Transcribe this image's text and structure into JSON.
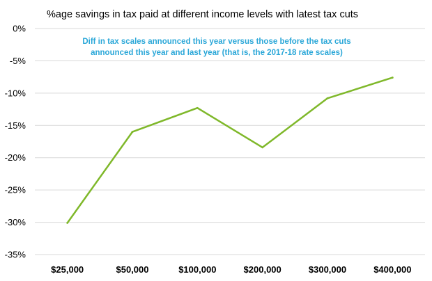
{
  "chart_data": {
    "type": "line",
    "title": "%age savings in tax paid at different income levels with latest tax cuts",
    "annotation": [
      "Diff in tax scales announced this year versus those before the tax cuts",
      "announced this year and last year (that is, the 2017-18 rate scales)"
    ],
    "categories": [
      "$25,000",
      "$50,000",
      "$100,000",
      "$200,000",
      "$300,000",
      "$400,000"
    ],
    "series": [
      {
        "values": [
          -30.1,
          -16.0,
          -12.3,
          -18.4,
          -10.8,
          -7.6
        ]
      }
    ],
    "yticks": [
      0,
      -5,
      -10,
      -15,
      -20,
      -25,
      -30,
      -35
    ],
    "ytick_labels": [
      "0%",
      "-5%",
      "-10%",
      "-15%",
      "-20%",
      "-25%",
      "-30%",
      "-35%"
    ],
    "ylim": [
      -35,
      0
    ],
    "xlabel": "",
    "ylabel": "",
    "grid": true,
    "legend": false,
    "colors": {
      "line": "#7fb82a",
      "annotation": "#2aa7d8",
      "grid": "#d9d9d9"
    }
  }
}
